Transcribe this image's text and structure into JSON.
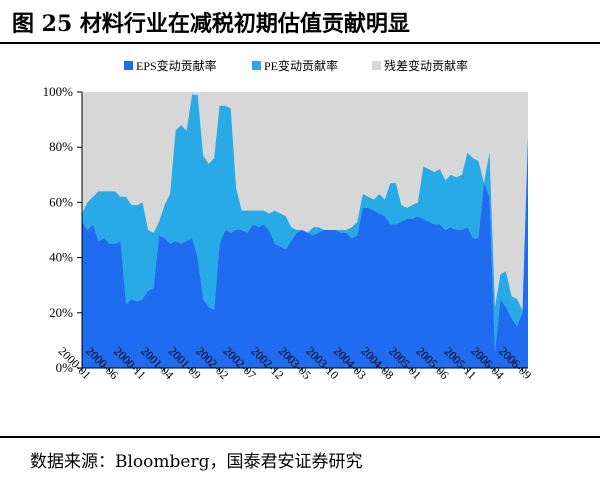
{
  "header": {
    "title": "图 25    材料行业在减税初期估值贡献明显"
  },
  "footer": {
    "source": "数据来源：Bloomberg，国泰君安证券研究"
  },
  "colors": {
    "eps": "#1f6cf0",
    "pe": "#27aae6",
    "residual": "#d7d7d7"
  },
  "chart_data": {
    "type": "area",
    "stacked": true,
    "ylim": [
      0,
      100
    ],
    "y_ticks": [
      0,
      20,
      40,
      60,
      80,
      100
    ],
    "y_tick_labels": [
      "0%",
      "20%",
      "40%",
      "60%",
      "80%",
      "100%"
    ],
    "x_tick_labels": [
      "2000-01",
      "2000-06",
      "2000-11",
      "2001-04",
      "2001-09",
      "2002-02",
      "2002-07",
      "2002-12",
      "2003-05",
      "2003-10",
      "2004-03",
      "2004-08",
      "2005-01",
      "2005-06",
      "2005-11",
      "2006-04",
      "2006-09"
    ],
    "legend_position": "top",
    "x": [
      "2000-01",
      "2000-02",
      "2000-03",
      "2000-04",
      "2000-05",
      "2000-06",
      "2000-07",
      "2000-08",
      "2000-09",
      "2000-10",
      "2000-11",
      "2000-12",
      "2001-01",
      "2001-02",
      "2001-03",
      "2001-04",
      "2001-05",
      "2001-06",
      "2001-07",
      "2001-08",
      "2001-09",
      "2001-10",
      "2001-11",
      "2001-12",
      "2002-01",
      "2002-02",
      "2002-03",
      "2002-04",
      "2002-05",
      "2002-06",
      "2002-07",
      "2002-08",
      "2002-09",
      "2002-10",
      "2002-11",
      "2002-12",
      "2003-01",
      "2003-02",
      "2003-03",
      "2003-04",
      "2003-05",
      "2003-06",
      "2003-07",
      "2003-08",
      "2003-09",
      "2003-10",
      "2003-11",
      "2003-12",
      "2004-01",
      "2004-02",
      "2004-03",
      "2004-04",
      "2004-05",
      "2004-06",
      "2004-07",
      "2004-08",
      "2004-09",
      "2004-10",
      "2004-11",
      "2004-12",
      "2005-01",
      "2005-02",
      "2005-03",
      "2005-04",
      "2005-05",
      "2005-06",
      "2005-07",
      "2005-08",
      "2005-09",
      "2005-10",
      "2005-11",
      "2005-12",
      "2006-01",
      "2006-02",
      "2006-03",
      "2006-04",
      "2006-05",
      "2006-06",
      "2006-07",
      "2006-08",
      "2006-09",
      "2006-10"
    ],
    "series": [
      {
        "name": "EPS变动贡献率",
        "values": [
          53,
          50,
          52,
          46,
          47,
          45,
          45,
          46,
          23,
          25,
          24,
          25,
          28,
          29,
          48,
          47,
          45,
          46,
          45,
          46,
          47,
          40,
          25,
          22,
          21,
          45,
          50,
          49,
          50,
          50,
          49,
          52,
          51,
          52,
          50,
          45,
          44,
          43,
          46,
          49,
          50,
          49,
          48,
          49,
          50,
          50,
          50,
          49,
          49,
          47,
          48,
          58,
          58,
          57,
          56,
          55,
          52,
          52,
          53,
          54,
          54,
          55,
          54,
          53,
          52,
          52,
          50,
          51,
          50,
          50,
          51,
          47,
          47,
          67,
          62,
          6,
          25,
          22,
          18,
          15,
          20,
          84
        ]
      },
      {
        "name": "PE变动贡献率",
        "values": [
          3,
          10,
          10,
          18,
          17,
          19,
          19,
          16,
          39,
          34,
          35,
          35,
          22,
          20,
          5,
          12,
          18,
          40,
          43,
          40,
          52,
          59,
          52,
          52,
          55,
          50,
          45,
          45,
          15,
          7,
          8,
          5,
          6,
          5,
          6,
          12,
          12,
          12,
          5,
          1,
          0,
          0,
          3,
          2,
          0,
          0,
          0,
          1,
          1,
          4,
          5,
          5,
          4,
          4,
          7,
          6,
          15,
          15,
          6,
          4,
          5,
          5,
          19,
          19,
          19,
          20,
          18,
          19,
          19,
          20,
          27,
          29,
          28,
          0,
          16,
          16,
          9,
          13,
          8,
          10,
          1,
          0
        ]
      }
    ],
    "residual_series_name": "残差变动贡献率"
  }
}
